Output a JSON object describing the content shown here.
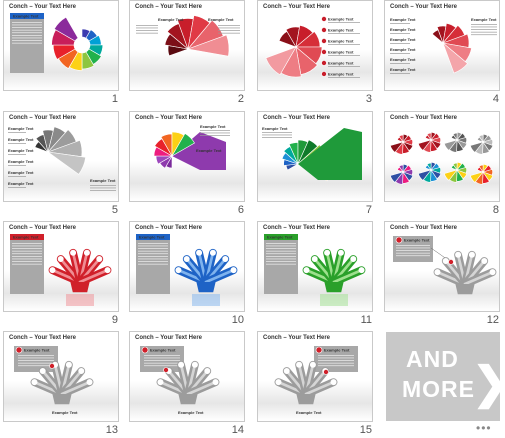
{
  "slide_title": "Conch – Your Text Here",
  "example_text": "Example Text",
  "slides": [
    {
      "number": "1"
    },
    {
      "number": "2"
    },
    {
      "number": "3"
    },
    {
      "number": "4"
    },
    {
      "number": "5"
    },
    {
      "number": "6"
    },
    {
      "number": "7"
    },
    {
      "number": "8"
    },
    {
      "number": "9"
    },
    {
      "number": "10"
    },
    {
      "number": "11"
    },
    {
      "number": "12"
    },
    {
      "number": "13"
    },
    {
      "number": "14"
    },
    {
      "number": "15"
    }
  ],
  "more_tile": {
    "line1": "AND",
    "line2": "MORE",
    "chevron": "❯"
  },
  "pagination": "•••",
  "colors": {
    "red": "#d0202a",
    "blue": "#1e63c6",
    "green": "#2aa02a",
    "gray": "#9c9c9c"
  }
}
